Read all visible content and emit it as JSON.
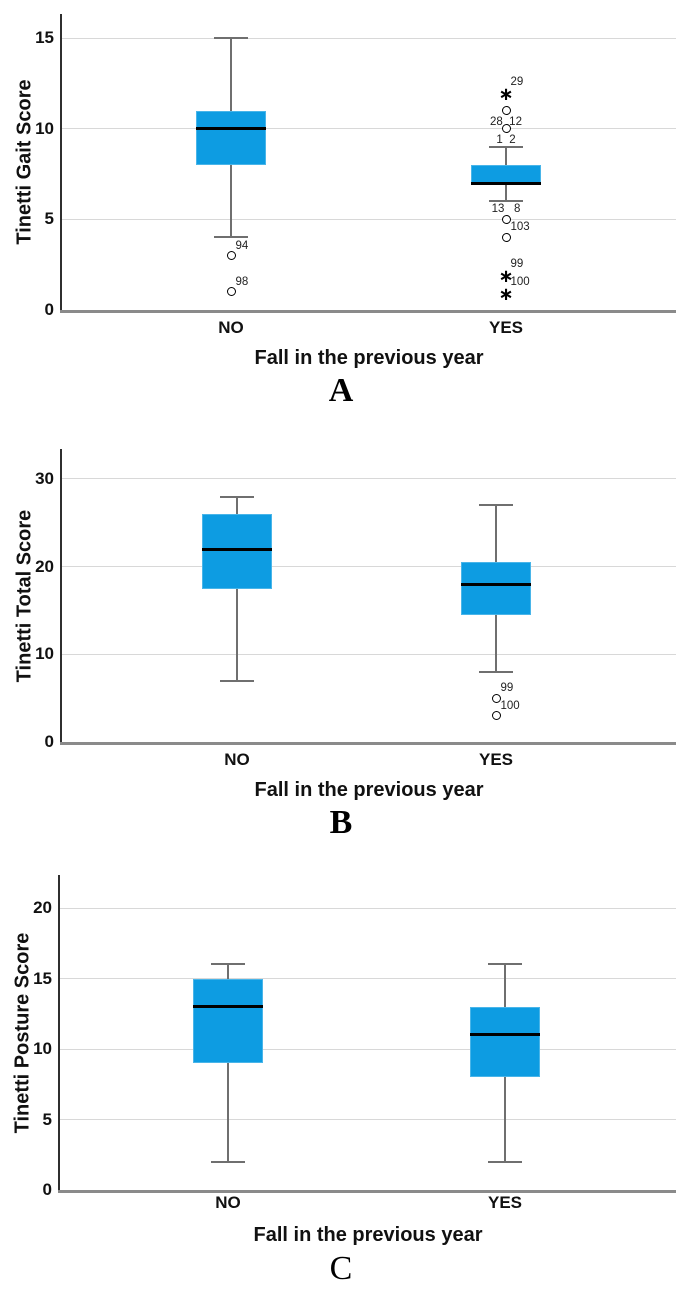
{
  "colors": {
    "box_fill": "#0d9ce2",
    "median_line": "#000000",
    "whisker": "#6f6f6f",
    "gridline": "#d8d8d8",
    "y_axis": "#2f2f2f",
    "x_axis": "#8a8a8a",
    "text": "#111111"
  },
  "chart_data": [
    {
      "type": "box",
      "panel_label": "A",
      "ylabel": "Tinetti Gait Score",
      "xlabel": "Fall in the previous year",
      "categories": [
        "NO",
        "YES"
      ],
      "yticks": [
        0,
        5,
        10,
        15
      ],
      "ylim": [
        0,
        16.3
      ],
      "grid": "horizontal",
      "groups": [
        {
          "category": "NO",
          "whisker_low": 4,
          "q1": 8,
          "median": 10,
          "q3": 11,
          "whisker_high": 15,
          "outliers": [
            {
              "value": 3,
              "marker": "circle",
              "label": "94",
              "label_pos": "above-right"
            },
            {
              "value": 1,
              "marker": "circle",
              "label": "98",
              "label_pos": "above-right"
            }
          ]
        },
        {
          "category": "YES",
          "whisker_low": 6,
          "q1": 7,
          "median": 7,
          "q3": 8,
          "whisker_high": 9,
          "outliers": [
            {
              "value": 12,
              "marker": "star",
              "label": "29",
              "label_pos": "above-right"
            },
            {
              "value": 11,
              "marker": "circle",
              "label": "28  12",
              "label_pos": "below"
            },
            {
              "value": 10,
              "marker": "circle",
              "label": "1  2",
              "label_pos": "below"
            },
            {
              "value": 5,
              "marker": "circle",
              "label": "13   8",
              "label_pos": "above"
            },
            {
              "value": 4,
              "marker": "circle",
              "label": "103",
              "label_pos": "above-right"
            },
            {
              "value": 2,
              "marker": "star",
              "label": "99",
              "label_pos": "above-right"
            },
            {
              "value": 1,
              "marker": "star",
              "label": "100",
              "label_pos": "above-right"
            }
          ]
        }
      ]
    },
    {
      "type": "box",
      "panel_label": "B",
      "ylabel": "Tinetti Total Score",
      "xlabel": "Fall in the previous year",
      "categories": [
        "NO",
        "YES"
      ],
      "yticks": [
        0,
        10,
        20,
        30
      ],
      "ylim": [
        0,
        33.4
      ],
      "grid": "horizontal",
      "groups": [
        {
          "category": "NO",
          "whisker_low": 7,
          "q1": 17.5,
          "median": 22,
          "q3": 26,
          "whisker_high": 28,
          "outliers": []
        },
        {
          "category": "YES",
          "whisker_low": 8,
          "q1": 14.5,
          "median": 18,
          "q3": 20.5,
          "whisker_high": 27,
          "outliers": [
            {
              "value": 5,
              "marker": "circle",
              "label": "99",
              "label_pos": "above-right"
            },
            {
              "value": 3,
              "marker": "circle",
              "label": "100",
              "label_pos": "above-right"
            }
          ]
        }
      ]
    },
    {
      "type": "box",
      "panel_label": "C",
      "ylabel": "Tinetti Posture Score",
      "xlabel": "Fall in the previous year",
      "categories": [
        "NO",
        "YES"
      ],
      "yticks": [
        0,
        5,
        10,
        15,
        20
      ],
      "ylim": [
        0,
        22.3
      ],
      "grid": "horizontal",
      "groups": [
        {
          "category": "NO",
          "whisker_low": 2,
          "q1": 9,
          "median": 13,
          "q3": 15,
          "whisker_high": 16,
          "outliers": []
        },
        {
          "category": "YES",
          "whisker_low": 2,
          "q1": 8,
          "median": 11,
          "q3": 13,
          "whisker_high": 16,
          "outliers": []
        }
      ]
    }
  ]
}
